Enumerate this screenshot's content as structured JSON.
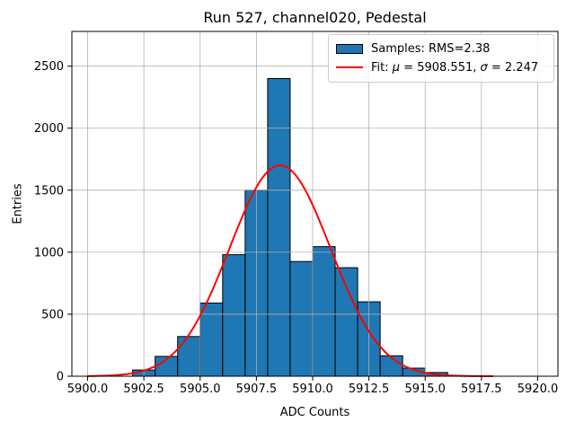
{
  "chart_data": {
    "type": "bar",
    "subtype": "histogram-with-gaussian-fit",
    "title": "Run 527, channel020, Pedestal",
    "xlabel": "ADC Counts",
    "ylabel": "Entries",
    "bin_edges": [
      5902,
      5903,
      5904,
      5905,
      5906,
      5907,
      5908,
      5909,
      5910,
      5911,
      5912,
      5913,
      5914,
      5915,
      5916
    ],
    "values": [
      50,
      160,
      320,
      590,
      980,
      1500,
      2400,
      925,
      1045,
      875,
      600,
      165,
      65,
      30
    ],
    "bar_color": "#1f77b4",
    "bar_edge_color": "#000000",
    "fit": {
      "mu": 5908.551,
      "sigma": 2.247,
      "amplitude": 1700,
      "color": "#ff0000",
      "line_width": 2,
      "x_range": [
        5900,
        5918
      ]
    },
    "stats": {
      "rms": 2.38,
      "mu": 5908.551,
      "sigma": 2.247
    },
    "legend": [
      {
        "swatch": "patch",
        "label": "Samples: RMS=2.38",
        "parts": [
          "Samples: RMS=2.38"
        ]
      },
      {
        "swatch": "line",
        "label": "Fit: μ = 5908.551, σ = 2.247",
        "parts": [
          "Fit: ",
          "μ",
          " = 5908.551, ",
          "σ",
          " = 2.247"
        ]
      }
    ],
    "legend_position": "upper right",
    "x_ticks": [
      {
        "v": 5900.0,
        "label": "5900.0"
      },
      {
        "v": 5902.5,
        "label": "5902.5"
      },
      {
        "v": 5905.0,
        "label": "5905.0"
      },
      {
        "v": 5907.5,
        "label": "5907.5"
      },
      {
        "v": 5910.0,
        "label": "5910.0"
      },
      {
        "v": 5912.5,
        "label": "5912.5"
      },
      {
        "v": 5915.0,
        "label": "5915.0"
      },
      {
        "v": 5917.5,
        "label": "5917.5"
      },
      {
        "v": 5920.0,
        "label": "5920.0"
      }
    ],
    "y_ticks": [
      {
        "v": 0,
        "label": "0"
      },
      {
        "v": 500,
        "label": "500"
      },
      {
        "v": 1000,
        "label": "1000"
      },
      {
        "v": 1500,
        "label": "1500"
      },
      {
        "v": 2000,
        "label": "2000"
      },
      {
        "v": 2500,
        "label": "2500"
      }
    ],
    "xlim": [
      5899.3,
      5920.9
    ],
    "ylim": [
      0,
      2780
    ],
    "grid": true,
    "grid_color": "#b0b0b0",
    "axis_color": "#000000",
    "background_color": "#ffffff"
  }
}
